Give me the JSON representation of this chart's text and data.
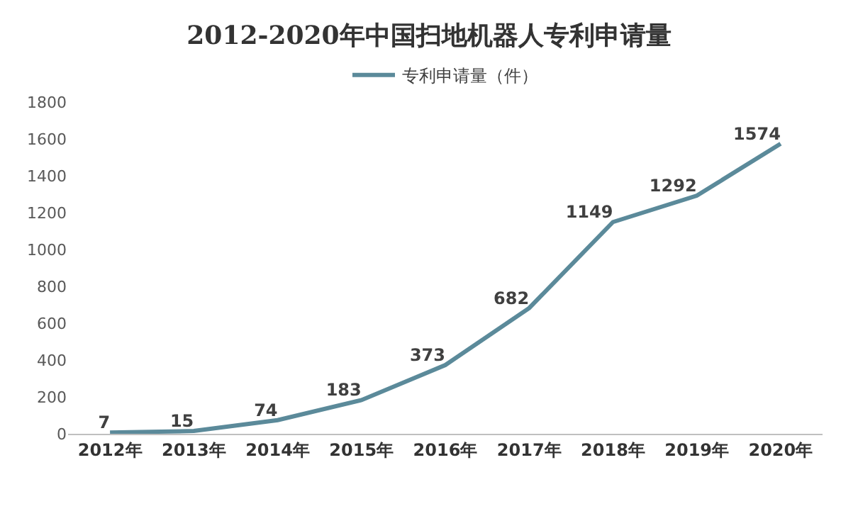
{
  "chart_data": {
    "type": "line",
    "title": "2012-2020年中国扫地机器人专利申请量",
    "categories": [
      "2012年",
      "2013年",
      "2014年",
      "2015年",
      "2016年",
      "2017年",
      "2018年",
      "2019年",
      "2020年"
    ],
    "series": [
      {
        "name": "专利申请量（件）",
        "color": "#5b8a9a",
        "values": [
          7,
          15,
          74,
          183,
          373,
          682,
          1149,
          1292,
          1574
        ]
      }
    ],
    "ylim": [
      0,
      1800
    ],
    "yticks": [
      0,
      200,
      400,
      600,
      800,
      1000,
      1200,
      1400,
      1600,
      1800
    ],
    "grid": false,
    "legend": "top",
    "data_labels": true,
    "marker": "none",
    "line_style": "solid"
  }
}
